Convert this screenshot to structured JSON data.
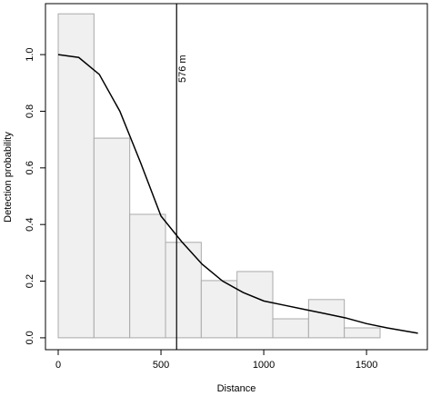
{
  "chart_data": {
    "type": "histogram",
    "x_label": "Distance",
    "y_label": "Detection probability",
    "bins": [
      0,
      174,
      348,
      522,
      696,
      870,
      1044,
      1218,
      1392,
      1566
    ],
    "values": [
      1.144,
      0.705,
      0.436,
      0.337,
      0.202,
      0.234,
      0.067,
      0.135,
      0.035
    ],
    "bar_color": "#f0f0f0",
    "bar_edge": "#aaaaaa",
    "curve": {
      "x": [
        0,
        100,
        200,
        300,
        400,
        500,
        600,
        700,
        800,
        900,
        1000,
        1100,
        1200,
        1300,
        1400,
        1500,
        1600,
        1750
      ],
      "values": [
        1.0,
        0.99,
        0.93,
        0.8,
        0.62,
        0.43,
        0.34,
        0.26,
        0.2,
        0.16,
        0.13,
        0.115,
        0.1,
        0.085,
        0.07,
        0.05,
        0.035,
        0.016
      ],
      "color": "#000000"
    },
    "vline": {
      "x": 576,
      "label": "576  m"
    },
    "xlim": [
      -62,
      1796
    ],
    "ylim": [
      -0.042,
      1.18
    ],
    "xticks": [
      0,
      500,
      1000,
      1500
    ],
    "yticks": [
      {
        "value": 0,
        "label": "0.0"
      },
      0.2,
      0.4,
      0.6,
      0.8,
      {
        "value": 1,
        "label": "1.0"
      }
    ]
  }
}
